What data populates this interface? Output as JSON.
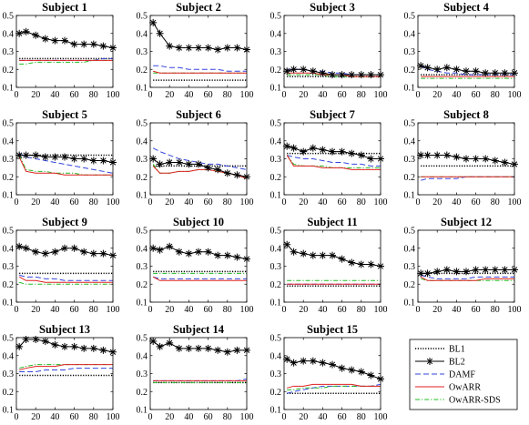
{
  "chart_data": {
    "type": "line",
    "layout": "4x4 grid of subplots, 15 subjects plus legend panel",
    "x_ticks": [
      0,
      20,
      40,
      60,
      80,
      100
    ],
    "xlim": [
      0,
      100
    ],
    "y_ticks": [
      0.1,
      0.2,
      0.3,
      0.4,
      0.5
    ],
    "ylim": [
      0.1,
      0.5
    ],
    "grid": false,
    "legend": {
      "placement": "bottom-right panel",
      "entries": [
        {
          "name": "BL1",
          "color": "#000000",
          "style": "dotted"
        },
        {
          "name": "BL2",
          "color": "#000000",
          "style": "solid-asterisk"
        },
        {
          "name": "DAMF",
          "color": "#3344dd",
          "style": "dashed"
        },
        {
          "name": "OwARR",
          "color": "#e02020",
          "style": "solid"
        },
        {
          "name": "OwARR-SDS",
          "color": "#22bb22",
          "style": "dashdot"
        }
      ]
    },
    "x": [
      3,
      10,
      20,
      30,
      40,
      50,
      60,
      70,
      80,
      90,
      100
    ],
    "subplots": [
      {
        "title": "Subject 1",
        "series": {
          "BL1": [
            0.26,
            0.26,
            0.26,
            0.26,
            0.26,
            0.26,
            0.26,
            0.26,
            0.26,
            0.26,
            0.26
          ],
          "BL2": [
            0.4,
            0.41,
            0.39,
            0.37,
            0.36,
            0.36,
            0.34,
            0.34,
            0.34,
            0.33,
            0.32
          ],
          "DAMF": [
            0.25,
            0.25,
            0.25,
            0.25,
            0.25,
            0.25,
            0.25,
            0.25,
            0.25,
            0.26,
            0.26
          ],
          "OwARR": [
            0.25,
            0.25,
            0.25,
            0.25,
            0.25,
            0.25,
            0.25,
            0.25,
            0.25,
            0.25,
            0.25
          ],
          "OwARR-SDS": [
            0.23,
            0.23,
            0.24,
            0.24,
            0.24,
            0.24,
            0.24,
            0.24,
            0.25,
            0.25,
            0.25
          ]
        }
      },
      {
        "title": "Subject 2",
        "series": {
          "BL1": [
            0.14,
            0.14,
            0.14,
            0.14,
            0.14,
            0.14,
            0.14,
            0.14,
            0.14,
            0.14,
            0.14
          ],
          "BL2": [
            0.46,
            0.4,
            0.33,
            0.32,
            0.32,
            0.32,
            0.32,
            0.31,
            0.32,
            0.32,
            0.31
          ],
          "DAMF": [
            0.22,
            0.22,
            0.21,
            0.21,
            0.2,
            0.2,
            0.2,
            0.2,
            0.19,
            0.19,
            0.19
          ],
          "OwARR": [
            0.19,
            0.18,
            0.18,
            0.18,
            0.18,
            0.18,
            0.18,
            0.18,
            0.18,
            0.18,
            0.18
          ],
          "OwARR-SDS": [
            0.18,
            0.18,
            0.18,
            0.18,
            0.18,
            0.18,
            0.18,
            0.18,
            0.18,
            0.18,
            0.18
          ]
        }
      },
      {
        "title": "Subject 3",
        "series": {
          "BL1": [
            0.16,
            0.16,
            0.16,
            0.16,
            0.16,
            0.16,
            0.16,
            0.16,
            0.16,
            0.16,
            0.16
          ],
          "BL2": [
            0.19,
            0.2,
            0.2,
            0.19,
            0.18,
            0.17,
            0.17,
            0.17,
            0.17,
            0.17,
            0.17
          ],
          "DAMF": [
            0.2,
            0.2,
            0.2,
            0.19,
            0.19,
            0.18,
            0.18,
            0.17,
            0.17,
            0.17,
            0.17
          ],
          "OwARR": [
            0.18,
            0.18,
            0.18,
            0.18,
            0.17,
            0.17,
            0.17,
            0.16,
            0.16,
            0.16,
            0.16
          ],
          "OwARR-SDS": [
            0.17,
            0.17,
            0.17,
            0.17,
            0.17,
            0.16,
            0.16,
            0.16,
            0.16,
            0.16,
            0.16
          ]
        }
      },
      {
        "title": "Subject 4",
        "series": {
          "BL1": [
            0.17,
            0.17,
            0.17,
            0.17,
            0.17,
            0.17,
            0.17,
            0.17,
            0.17,
            0.17,
            0.17
          ],
          "BL2": [
            0.22,
            0.21,
            0.2,
            0.21,
            0.2,
            0.19,
            0.19,
            0.18,
            0.18,
            0.18,
            0.18
          ],
          "DAMF": [
            0.22,
            0.2,
            0.19,
            0.18,
            0.18,
            0.17,
            0.17,
            0.17,
            0.17,
            0.17,
            0.17
          ],
          "OwARR": [
            0.16,
            0.16,
            0.16,
            0.16,
            0.16,
            0.16,
            0.16,
            0.16,
            0.16,
            0.16,
            0.16
          ],
          "OwARR-SDS": [
            0.15,
            0.15,
            0.15,
            0.15,
            0.15,
            0.15,
            0.15,
            0.15,
            0.15,
            0.15,
            0.15
          ]
        }
      },
      {
        "title": "Subject 5",
        "series": {
          "BL1": [
            0.32,
            0.32,
            0.32,
            0.32,
            0.32,
            0.32,
            0.32,
            0.32,
            0.32,
            0.32,
            0.32
          ],
          "BL2": [
            0.32,
            0.32,
            0.32,
            0.31,
            0.31,
            0.31,
            0.3,
            0.3,
            0.29,
            0.29,
            0.28
          ],
          "DAMF": [
            0.33,
            0.31,
            0.3,
            0.29,
            0.28,
            0.27,
            0.26,
            0.25,
            0.24,
            0.23,
            0.22
          ],
          "OwARR": [
            0.31,
            0.23,
            0.22,
            0.22,
            0.22,
            0.21,
            0.21,
            0.21,
            0.21,
            0.21,
            0.21
          ],
          "OwARR-SDS": [
            0.32,
            0.24,
            0.23,
            0.23,
            0.22,
            0.22,
            0.22,
            0.21,
            0.21,
            0.21,
            0.21
          ]
        }
      },
      {
        "title": "Subject 6",
        "series": {
          "BL1": [
            0.26,
            0.26,
            0.26,
            0.26,
            0.26,
            0.26,
            0.26,
            0.26,
            0.26,
            0.26,
            0.26
          ],
          "BL2": [
            0.3,
            0.27,
            0.28,
            0.28,
            0.27,
            0.27,
            0.25,
            0.24,
            0.22,
            0.21,
            0.2
          ],
          "DAMF": [
            0.36,
            0.34,
            0.32,
            0.3,
            0.29,
            0.28,
            0.27,
            0.27,
            0.26,
            0.25,
            0.24
          ],
          "OwARR": [
            0.26,
            0.22,
            0.22,
            0.23,
            0.23,
            0.24,
            0.24,
            0.23,
            0.22,
            0.21,
            0.19
          ],
          "OwARR-SDS": [
            0.27,
            0.22,
            0.22,
            0.23,
            0.23,
            0.24,
            0.24,
            0.23,
            0.22,
            0.21,
            0.19
          ]
        }
      },
      {
        "title": "Subject 7",
        "series": {
          "BL1": [
            0.33,
            0.33,
            0.33,
            0.33,
            0.33,
            0.33,
            0.33,
            0.33,
            0.33,
            0.33,
            0.33
          ],
          "BL2": [
            0.37,
            0.36,
            0.34,
            0.36,
            0.35,
            0.34,
            0.34,
            0.33,
            0.32,
            0.3,
            0.3
          ],
          "DAMF": [
            0.32,
            0.31,
            0.3,
            0.3,
            0.29,
            0.28,
            0.28,
            0.27,
            0.27,
            0.26,
            0.26
          ],
          "OwARR": [
            0.32,
            0.26,
            0.26,
            0.26,
            0.25,
            0.25,
            0.25,
            0.24,
            0.24,
            0.24,
            0.24
          ],
          "OwARR-SDS": [
            0.32,
            0.27,
            0.26,
            0.26,
            0.26,
            0.25,
            0.25,
            0.25,
            0.25,
            0.25,
            0.25
          ]
        }
      },
      {
        "title": "Subject 8",
        "series": {
          "BL1": [
            0.26,
            0.26,
            0.26,
            0.26,
            0.26,
            0.26,
            0.26,
            0.26,
            0.26,
            0.26,
            0.26
          ],
          "BL2": [
            0.32,
            0.32,
            0.32,
            0.32,
            0.31,
            0.3,
            0.3,
            0.3,
            0.29,
            0.28,
            0.27
          ],
          "DAMF": [
            0.18,
            0.19,
            0.19,
            0.19,
            0.19,
            0.2,
            0.2,
            0.2,
            0.2,
            0.2,
            0.2
          ],
          "OwARR": [
            0.2,
            0.2,
            0.2,
            0.2,
            0.2,
            0.2,
            0.2,
            0.2,
            0.2,
            0.2,
            0.2
          ],
          "OwARR-SDS": [
            0.2,
            0.2,
            0.2,
            0.2,
            0.2,
            0.2,
            0.2,
            0.2,
            0.2,
            0.2,
            0.2
          ]
        }
      },
      {
        "title": "Subject 9",
        "series": {
          "BL1": [
            0.26,
            0.26,
            0.26,
            0.26,
            0.26,
            0.26,
            0.26,
            0.26,
            0.26,
            0.26,
            0.26
          ],
          "BL2": [
            0.41,
            0.4,
            0.38,
            0.37,
            0.38,
            0.4,
            0.4,
            0.38,
            0.37,
            0.37,
            0.36
          ],
          "DAMF": [
            0.25,
            0.24,
            0.24,
            0.23,
            0.23,
            0.22,
            0.22,
            0.22,
            0.22,
            0.22,
            0.22
          ],
          "OwARR": [
            0.24,
            0.22,
            0.22,
            0.21,
            0.21,
            0.21,
            0.21,
            0.21,
            0.21,
            0.21,
            0.21
          ],
          "OwARR-SDS": [
            0.21,
            0.2,
            0.2,
            0.2,
            0.2,
            0.2,
            0.2,
            0.2,
            0.2,
            0.2,
            0.2
          ]
        }
      },
      {
        "title": "Subject 10",
        "series": {
          "BL1": [
            0.27,
            0.27,
            0.27,
            0.27,
            0.27,
            0.27,
            0.27,
            0.27,
            0.27,
            0.27,
            0.27
          ],
          "BL2": [
            0.4,
            0.39,
            0.41,
            0.38,
            0.37,
            0.38,
            0.38,
            0.36,
            0.36,
            0.35,
            0.34
          ],
          "DAMF": [
            0.24,
            0.23,
            0.23,
            0.23,
            0.23,
            0.23,
            0.23,
            0.23,
            0.23,
            0.23,
            0.23
          ],
          "OwARR": [
            0.24,
            0.22,
            0.22,
            0.22,
            0.22,
            0.22,
            0.22,
            0.22,
            0.22,
            0.22,
            0.22
          ],
          "OwARR-SDS": [
            0.26,
            0.26,
            0.26,
            0.26,
            0.26,
            0.26,
            0.26,
            0.26,
            0.26,
            0.26,
            0.26
          ]
        }
      },
      {
        "title": "Subject 11",
        "series": {
          "BL1": [
            0.19,
            0.19,
            0.19,
            0.19,
            0.19,
            0.19,
            0.19,
            0.19,
            0.19,
            0.19,
            0.19
          ],
          "BL2": [
            0.42,
            0.38,
            0.37,
            0.36,
            0.36,
            0.36,
            0.34,
            0.32,
            0.31,
            0.31,
            0.3
          ],
          "DAMF": [
            0.2,
            0.2,
            0.2,
            0.2,
            0.2,
            0.2,
            0.2,
            0.2,
            0.2,
            0.2,
            0.2
          ],
          "OwARR": [
            0.2,
            0.2,
            0.2,
            0.2,
            0.2,
            0.2,
            0.2,
            0.2,
            0.2,
            0.2,
            0.2
          ],
          "OwARR-SDS": [
            0.22,
            0.22,
            0.22,
            0.22,
            0.22,
            0.22,
            0.22,
            0.22,
            0.22,
            0.22,
            0.22
          ]
        }
      },
      {
        "title": "Subject 12",
        "series": {
          "BL1": [
            0.26,
            0.26,
            0.26,
            0.26,
            0.26,
            0.26,
            0.26,
            0.26,
            0.26,
            0.26,
            0.26
          ],
          "BL2": [
            0.26,
            0.26,
            0.27,
            0.28,
            0.27,
            0.27,
            0.28,
            0.28,
            0.28,
            0.28,
            0.28
          ],
          "DAMF": [
            0.25,
            0.24,
            0.23,
            0.23,
            0.23,
            0.23,
            0.24,
            0.24,
            0.24,
            0.24,
            0.24
          ],
          "OwARR": [
            0.24,
            0.22,
            0.22,
            0.22,
            0.22,
            0.22,
            0.22,
            0.23,
            0.23,
            0.23,
            0.23
          ],
          "OwARR-SDS": [
            0.23,
            0.22,
            0.22,
            0.22,
            0.22,
            0.22,
            0.22,
            0.22,
            0.22,
            0.22,
            0.22
          ]
        }
      },
      {
        "title": "Subject 13",
        "series": {
          "BL1": [
            0.29,
            0.29,
            0.29,
            0.29,
            0.29,
            0.29,
            0.29,
            0.29,
            0.29,
            0.29,
            0.29
          ],
          "BL2": [
            0.45,
            0.49,
            0.49,
            0.48,
            0.46,
            0.45,
            0.45,
            0.44,
            0.44,
            0.43,
            0.42
          ],
          "DAMF": [
            0.31,
            0.31,
            0.31,
            0.32,
            0.32,
            0.32,
            0.33,
            0.33,
            0.33,
            0.33,
            0.33
          ],
          "OwARR": [
            0.32,
            0.33,
            0.34,
            0.34,
            0.34,
            0.35,
            0.35,
            0.35,
            0.35,
            0.35,
            0.35
          ],
          "OwARR-SDS": [
            0.33,
            0.34,
            0.35,
            0.35,
            0.35,
            0.35,
            0.35,
            0.35,
            0.35,
            0.35,
            0.35
          ]
        }
      },
      {
        "title": "Subject 14",
        "series": {
          "BL1": [
            0.25,
            0.25,
            0.25,
            0.25,
            0.25,
            0.25,
            0.25,
            0.25,
            0.25,
            0.25,
            0.25
          ],
          "BL2": [
            0.48,
            0.45,
            0.47,
            0.44,
            0.44,
            0.44,
            0.44,
            0.43,
            0.42,
            0.43,
            0.43
          ],
          "DAMF": [
            0.26,
            0.26,
            0.26,
            0.26,
            0.26,
            0.26,
            0.26,
            0.26,
            0.26,
            0.26,
            0.27
          ],
          "OwARR": [
            0.26,
            0.26,
            0.26,
            0.26,
            0.26,
            0.26,
            0.26,
            0.26,
            0.26,
            0.26,
            0.26
          ],
          "OwARR-SDS": [
            0.25,
            0.25,
            0.25,
            0.25,
            0.25,
            0.25,
            0.25,
            0.25,
            0.25,
            0.25,
            0.25
          ]
        }
      },
      {
        "title": "Subject 15",
        "series": {
          "BL1": [
            0.19,
            0.19,
            0.19,
            0.19,
            0.19,
            0.19,
            0.19,
            0.19,
            0.19,
            0.19,
            0.19
          ],
          "BL2": [
            0.38,
            0.36,
            0.37,
            0.37,
            0.36,
            0.35,
            0.33,
            0.32,
            0.31,
            0.29,
            0.27
          ],
          "DAMF": [
            0.19,
            0.2,
            0.21,
            0.22,
            0.23,
            0.23,
            0.23,
            0.23,
            0.23,
            0.23,
            0.24
          ],
          "OwARR": [
            0.22,
            0.23,
            0.23,
            0.24,
            0.24,
            0.24,
            0.24,
            0.24,
            0.23,
            0.23,
            0.23
          ],
          "OwARR-SDS": [
            0.21,
            0.21,
            0.22,
            0.22,
            0.22,
            0.23,
            0.23,
            0.23,
            0.23,
            0.23,
            0.23
          ]
        }
      }
    ]
  }
}
